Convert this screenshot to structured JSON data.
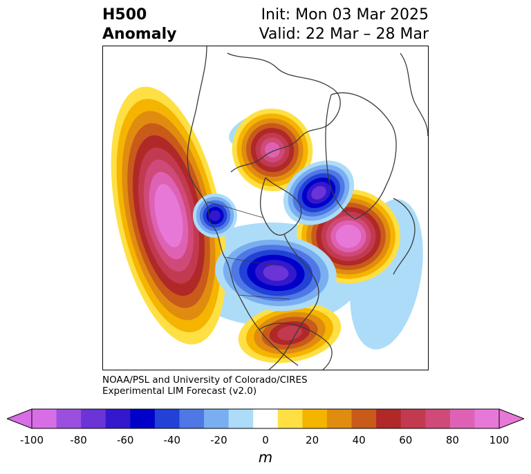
{
  "title": {
    "left_line1": "H500",
    "left_line2": "Anomaly",
    "right_line1": "Init: Mon 03 Mar 2025",
    "right_line2": "Valid: 22 Mar – 28 Mar"
  },
  "credit": {
    "line1": "NOAA/PSL and University of Colorado/CIRES",
    "line2": "Experimental LIM Forecast (v2.0)"
  },
  "colorbar": {
    "unit": "m",
    "min": -100,
    "max": 100,
    "levels": [
      -100,
      -90,
      -80,
      -70,
      -60,
      -50,
      -40,
      -30,
      -20,
      -10,
      10,
      20,
      30,
      40,
      50,
      60,
      70,
      80,
      90,
      100
    ],
    "ticks": [
      "-100",
      "-80",
      "-60",
      "-40",
      "-20",
      "0",
      "20",
      "40",
      "60",
      "80",
      "100"
    ],
    "colors": [
      "#d86ee6",
      "#9b4fdf",
      "#6a34d6",
      "#3418cc",
      "#0000c8",
      "#2242d6",
      "#4f78e6",
      "#79aff0",
      "#acdcf8",
      "#ffffff",
      "#ffe044",
      "#f5b400",
      "#e08c10",
      "#c85a1a",
      "#b02828",
      "#c23a50",
      "#cf4a78",
      "#de62b4",
      "#e878d8"
    ]
  },
  "map": {
    "features": [
      {
        "name": "positive-anomaly-west-pacific",
        "sign": "positive",
        "peak_m": 100
      },
      {
        "name": "positive-anomaly-arctic-canada",
        "sign": "positive",
        "peak_m": 80
      },
      {
        "name": "positive-anomaly-north-atlantic",
        "sign": "positive",
        "peak_m": 100
      },
      {
        "name": "positive-anomaly-southeast-us",
        "sign": "positive",
        "peak_m": 60
      },
      {
        "name": "negative-anomaly-gulf-of-alaska",
        "sign": "negative",
        "peak_m": -60
      },
      {
        "name": "negative-anomaly-great-lakes",
        "sign": "negative",
        "peak_m": -70
      },
      {
        "name": "negative-anomaly-greenland",
        "sign": "negative",
        "peak_m": -70
      }
    ]
  }
}
